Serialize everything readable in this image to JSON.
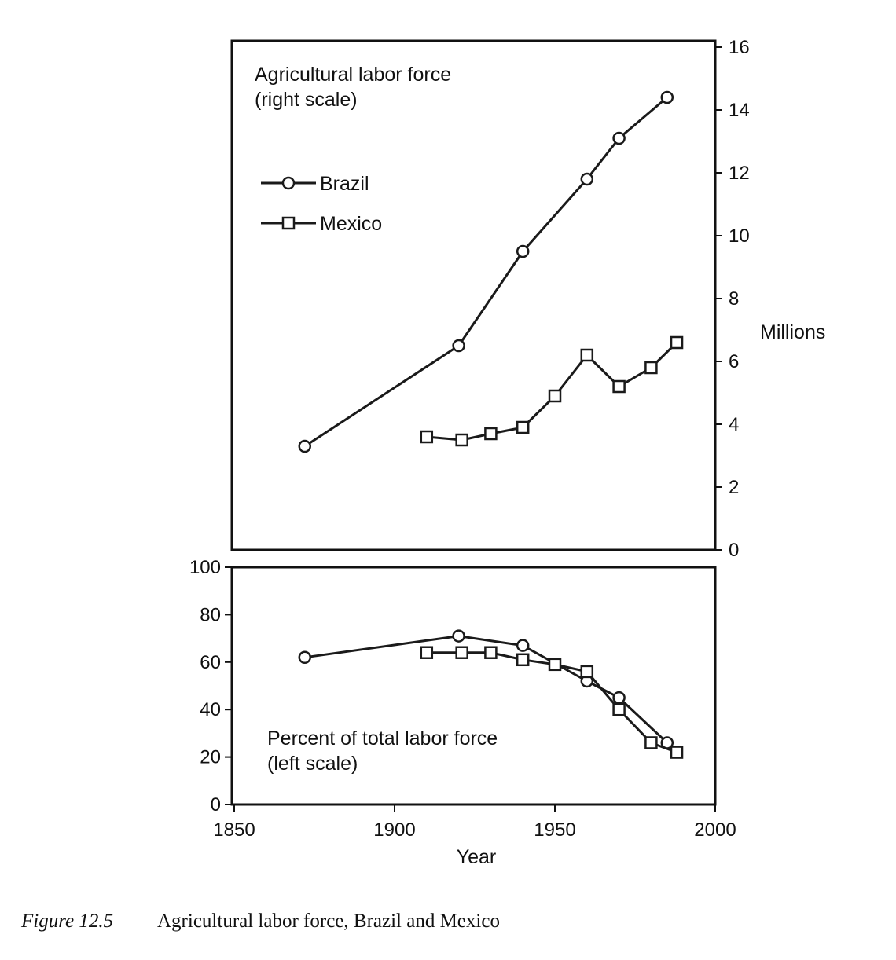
{
  "chart_data": [
    {
      "type": "line",
      "panel": "top",
      "annotation": [
        "Agricultural labor force",
        "(right scale)"
      ],
      "ylabel": "Millions",
      "ylim": [
        0,
        16
      ],
      "xlim": [
        1850,
        2000
      ],
      "y_ticks": [
        "0",
        "2",
        "4",
        "6",
        "8",
        "10",
        "12",
        "14",
        "16"
      ],
      "y_axis_side": "right",
      "legend": {
        "placement": "upper-left",
        "entries": [
          {
            "label": "Brazil",
            "marker": "circle"
          },
          {
            "label": "Mexico",
            "marker": "square"
          }
        ]
      },
      "series": [
        {
          "name": "Brazil",
          "marker": "circle",
          "points": [
            [
              1872,
              3.3
            ],
            [
              1920,
              6.5
            ],
            [
              1940,
              9.5
            ],
            [
              1960,
              11.8
            ],
            [
              1970,
              13.1
            ],
            [
              1985,
              14.4
            ]
          ]
        },
        {
          "name": "Mexico",
          "marker": "square",
          "points": [
            [
              1910,
              3.6
            ],
            [
              1921,
              3.5
            ],
            [
              1930,
              3.7
            ],
            [
              1940,
              3.9
            ],
            [
              1950,
              4.9
            ],
            [
              1960,
              6.2
            ],
            [
              1970,
              5.2
            ],
            [
              1980,
              5.8
            ],
            [
              1988,
              6.6
            ]
          ]
        }
      ]
    },
    {
      "type": "line",
      "panel": "bottom",
      "annotation": [
        "Percent of total labor force",
        "(left scale)"
      ],
      "xlabel": "Year",
      "ylim": [
        0,
        100
      ],
      "xlim": [
        1850,
        2000
      ],
      "x_ticks": [
        "1850",
        "1900",
        "1950",
        "2000"
      ],
      "y_ticks": [
        "0",
        "20",
        "40",
        "60",
        "80",
        "100"
      ],
      "y_axis_side": "left",
      "series": [
        {
          "name": "Brazil",
          "marker": "circle",
          "points": [
            [
              1872,
              62
            ],
            [
              1920,
              71
            ],
            [
              1940,
              67
            ],
            [
              1960,
              52
            ],
            [
              1970,
              45
            ],
            [
              1985,
              26
            ]
          ]
        },
        {
          "name": "Mexico",
          "marker": "square",
          "points": [
            [
              1910,
              64
            ],
            [
              1921,
              64
            ],
            [
              1930,
              64
            ],
            [
              1940,
              61
            ],
            [
              1950,
              59
            ],
            [
              1960,
              56
            ],
            [
              1970,
              40
            ],
            [
              1980,
              26
            ],
            [
              1988,
              22
            ]
          ]
        }
      ]
    }
  ],
  "caption": {
    "label": "Figure 12.5",
    "text": "Agricultural labor force, Brazil and Mexico"
  }
}
